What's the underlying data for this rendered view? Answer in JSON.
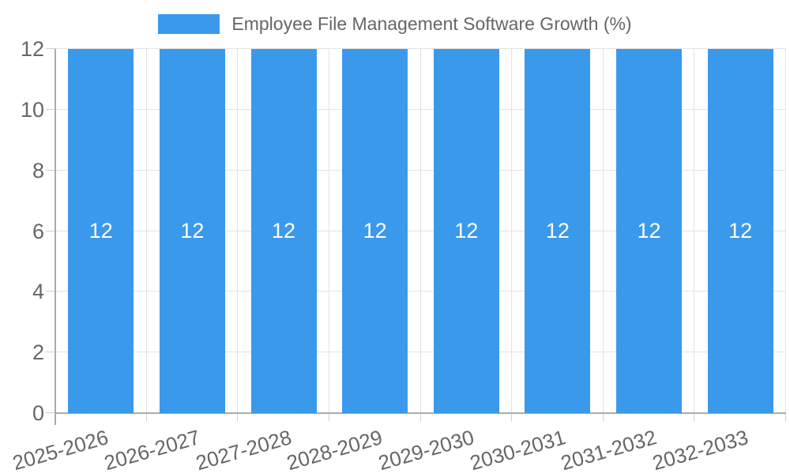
{
  "chart_data": {
    "type": "bar",
    "title": "Employee File Management Software Growth (%)",
    "categories": [
      "2025-2026",
      "2026-2027",
      "2027-2028",
      "2028-2029",
      "2029-2030",
      "2030-2031",
      "2031-2032",
      "2032-2033"
    ],
    "values": [
      12,
      12,
      12,
      12,
      12,
      12,
      12,
      12
    ],
    "bar_value_labels": [
      "12",
      "12",
      "12",
      "12",
      "12",
      "12",
      "12",
      "12"
    ],
    "xlabel": "",
    "ylabel": "",
    "ylim": [
      0,
      12
    ],
    "yticks": [
      0,
      2,
      4,
      6,
      8,
      10,
      12
    ],
    "ytick_labels": [
      "0",
      "2",
      "4",
      "6",
      "8",
      "10",
      "12"
    ],
    "grid": true,
    "legend_position": "top",
    "x_tick_rotation_deg": -16,
    "colors": {
      "bar": "#3B99EC",
      "grid": "#E3E3E3",
      "axis": "#ABABAB",
      "tick": "#CFCFCF",
      "tick_text": "#666666",
      "bar_label": "#FFFFFF",
      "background": "#FFFFFF"
    }
  }
}
